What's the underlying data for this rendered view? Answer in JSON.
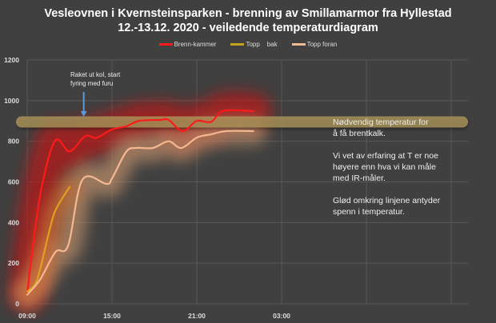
{
  "chart_data": {
    "type": "line",
    "title": "Vesleovnen i Kvernsteinsparken - brenning av Smillamarmor fra Hyllestad",
    "subtitle": "12.-13.12. 2020 - veiledende temperaturdiagram",
    "xlabel": "",
    "ylabel": "",
    "ylim": [
      0,
      1200
    ],
    "y_ticks": [
      "0",
      "200",
      "400",
      "600",
      "800",
      "1000",
      "1200"
    ],
    "x_ticks": [
      "09:00",
      "15:00",
      "21:00",
      "03:00"
    ],
    "grid": true,
    "legend_position": "top",
    "series": [
      {
        "name": "Brenn-kammer",
        "color": "#ff1a1a",
        "x": [
          "09:00",
          "09:30",
          "10:06",
          "11:00",
          "12:00",
          "13:06",
          "13:54",
          "15:00",
          "16:00",
          "16:54",
          "18:24",
          "19:00",
          "20:00",
          "21:00",
          "22:00",
          "22:54",
          "01:00"
        ],
        "y": [
          50,
          340,
          600,
          805,
          750,
          825,
          817,
          858,
          873,
          900,
          905,
          905,
          850,
          900,
          895,
          950,
          948
        ]
      },
      {
        "name": "Topp    bak",
        "color": "#e0a020",
        "x": [
          "09:00",
          "09:42",
          "10:30",
          "11:00",
          "12:00"
        ],
        "y": [
          60,
          118,
          340,
          460,
          575
        ]
      },
      {
        "name": "Topp foran",
        "color": "#f5b890",
        "x": [
          "09:00",
          "09:54",
          "11:00",
          "11:54",
          "12:54",
          "14:36",
          "15:00",
          "16:00",
          "16:42",
          "17:54",
          "19:00",
          "19:54",
          "21:00",
          "22:00",
          "23:06",
          "01:00"
        ],
        "y": [
          45,
          118,
          255,
          287,
          610,
          590,
          617,
          748,
          767,
          767,
          800,
          767,
          818,
          834,
          850,
          850
        ]
      }
    ],
    "reference_band": {
      "value": 895,
      "color": "#b8a060"
    },
    "annotations": {
      "arrow_note": [
        "Raket ut kol, start",
        "fyring med furu"
      ],
      "arrow_time": "13:00",
      "side_note": [
        [
          "Nødvendig temperatur for",
          "å få brentkalk."
        ],
        [
          "Vi vet av erfaring at T er noe",
          "høyere enn hva vi kan måle",
          "med IR-måler."
        ],
        [
          "Glød omkring  linjene antyder",
          "spenn i temperatur."
        ]
      ]
    }
  }
}
